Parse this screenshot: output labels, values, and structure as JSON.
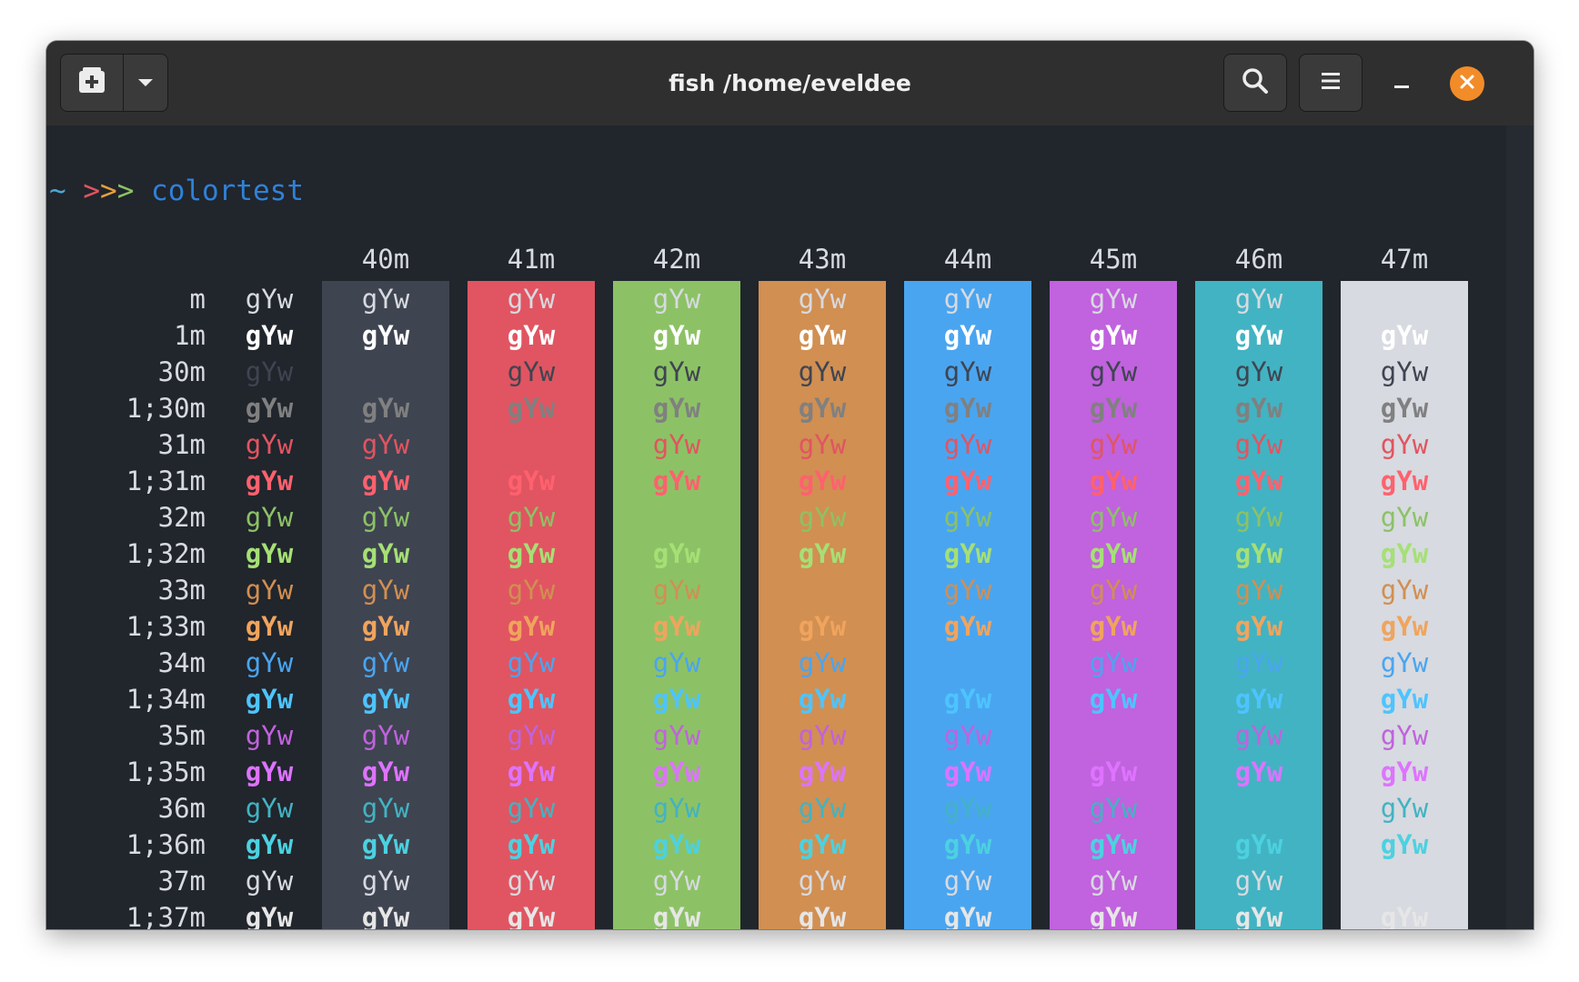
{
  "window": {
    "title": "fish /home/eveldee",
    "icons": {
      "new_tab": "new-tab-icon",
      "tab_menu": "chevron-down-icon",
      "search": "search-icon",
      "menu": "hamburger-menu-icon",
      "minimize": "minimize-icon",
      "close": "close-icon"
    },
    "close_color": "#f28c28"
  },
  "prompt": {
    "tilde": "~",
    "arrows": [
      ">",
      ">",
      ">"
    ],
    "command": "colortest",
    "colors": {
      "tilde": "#4aa8d8",
      "arrow1": "#e05561",
      "arrow2": "#e5a13d",
      "arrow3": "#8cc265",
      "command": "#2f81d8"
    }
  },
  "colortest": {
    "sample": "gYw",
    "columns": [
      "",
      "40m",
      "41m",
      "42m",
      "43m",
      "44m",
      "45m",
      "46m",
      "47m"
    ],
    "rows": [
      "m",
      "1m",
      "30m",
      "1;30m",
      "31m",
      "1;31m",
      "32m",
      "1;32m",
      "33m",
      "1;33m",
      "34m",
      "1;34m",
      "35m",
      "1;35m",
      "36m",
      "1;36m",
      "37m",
      "1;37m"
    ],
    "bg_colors": [
      "#3f4451",
      "#e05561",
      "#8cc265",
      "#d18f52",
      "#4aa5f0",
      "#c162de",
      "#42b3c2",
      "#d7dae0"
    ],
    "fg_colors": {
      "default": "#d7dae0",
      "30": "#3f4451",
      "1;30": "#808080",
      "31": "#e05561",
      "1;31": "#ff616e",
      "32": "#8cc265",
      "1;32": "#a5e075",
      "33": "#d18f52",
      "1;33": "#f0a45d",
      "34": "#4aa5f0",
      "1;34": "#4dc4ff",
      "35": "#c162de",
      "1;35": "#de73ff",
      "36": "#42b3c2",
      "1;36": "#4cd1e0",
      "37": "#d7dae0",
      "1;37": "#e6e6e6"
    }
  }
}
